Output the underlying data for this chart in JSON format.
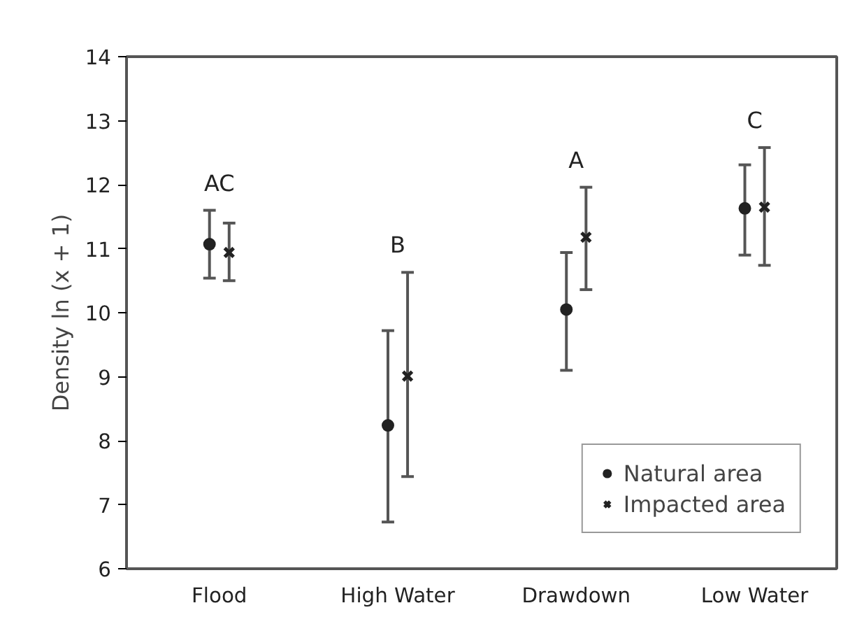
{
  "chart_data": {
    "type": "scatter",
    "ylabel": "Density ln (x + 1)",
    "categories": [
      "Flood",
      "High Water",
      "Drawdown",
      "Low Water"
    ],
    "series": [
      {
        "name": "Natural area",
        "color": "#222222",
        "marker": "circle",
        "values": [
          11.07,
          8.24,
          10.05,
          11.63
        ],
        "errors": [
          [
            10.54,
            11.6
          ],
          [
            6.73,
            9.72
          ],
          [
            9.1,
            10.94
          ],
          [
            10.9,
            12.31
          ]
        ]
      },
      {
        "name": "Impacted area",
        "color": "#222222",
        "marker": "cross",
        "values": [
          10.94,
          9.01,
          11.18,
          11.65
        ],
        "errors": [
          [
            10.5,
            11.4
          ],
          [
            7.44,
            10.63
          ],
          [
            10.36,
            11.96
          ],
          [
            10.74,
            12.58
          ]
        ]
      }
    ],
    "ylim": [
      6,
      14
    ],
    "yticks": [
      6,
      7,
      8,
      9,
      10,
      11,
      12,
      13,
      14
    ],
    "annotations": [
      "AC",
      "B",
      "A",
      "C"
    ],
    "grid": false,
    "legend": "bottom right"
  }
}
